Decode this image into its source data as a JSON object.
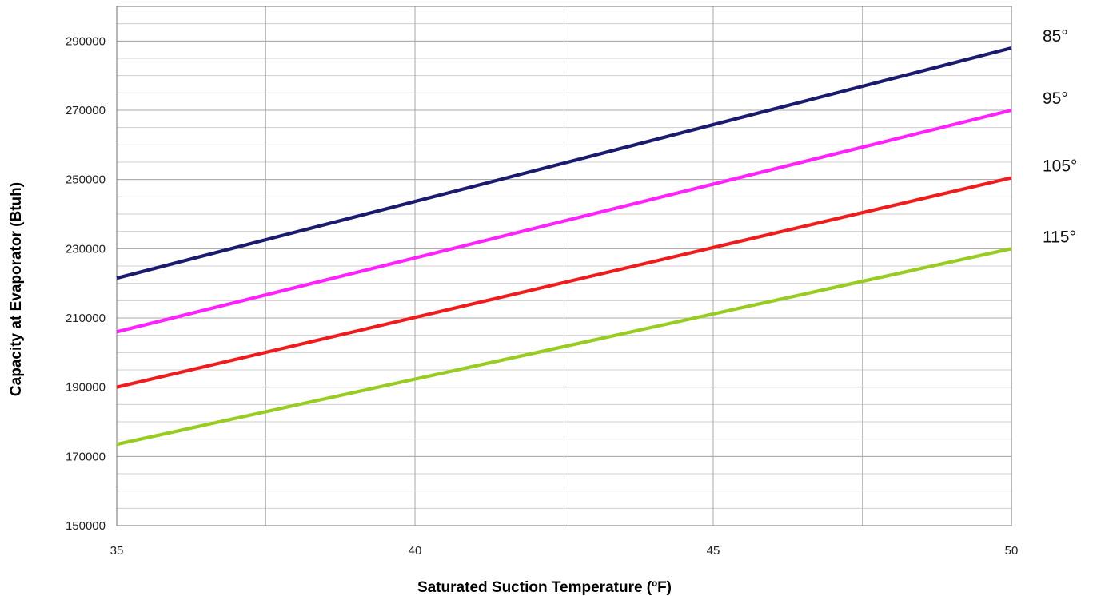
{
  "chart_data": {
    "type": "line",
    "title": "",
    "xlabel": "Saturated Suction Temperature (ºF)",
    "ylabel": "Capacity at Evaporator (Btuh)",
    "xlim": [
      35,
      50
    ],
    "ylim": [
      150000,
      300000
    ],
    "x_ticks": [
      35,
      40,
      45,
      50
    ],
    "x_tick_labels": [
      "35",
      "40",
      "45",
      "50"
    ],
    "x_minor_step": 2.5,
    "y_ticks": [
      150000,
      170000,
      190000,
      210000,
      230000,
      250000,
      270000,
      290000
    ],
    "y_tick_labels": [
      "150000",
      "170000",
      "190000",
      "210000",
      "230000",
      "250000",
      "270000",
      "290000"
    ],
    "y_minor_step": 5000,
    "grid": true,
    "legend": "labels at right end of lines",
    "series": [
      {
        "name": "85°",
        "color": "#1a1a6e",
        "x": [
          35,
          50
        ],
        "values": [
          221500,
          288000
        ]
      },
      {
        "name": "95°",
        "color": "#ff22ff",
        "x": [
          35,
          50
        ],
        "values": [
          206000,
          270000
        ]
      },
      {
        "name": "105°",
        "color": "#ee1c1c",
        "x": [
          35,
          50
        ],
        "values": [
          190000,
          250500
        ]
      },
      {
        "name": "115°",
        "color": "#99cc22",
        "x": [
          35,
          50
        ],
        "values": [
          173500,
          230000
        ]
      }
    ]
  }
}
